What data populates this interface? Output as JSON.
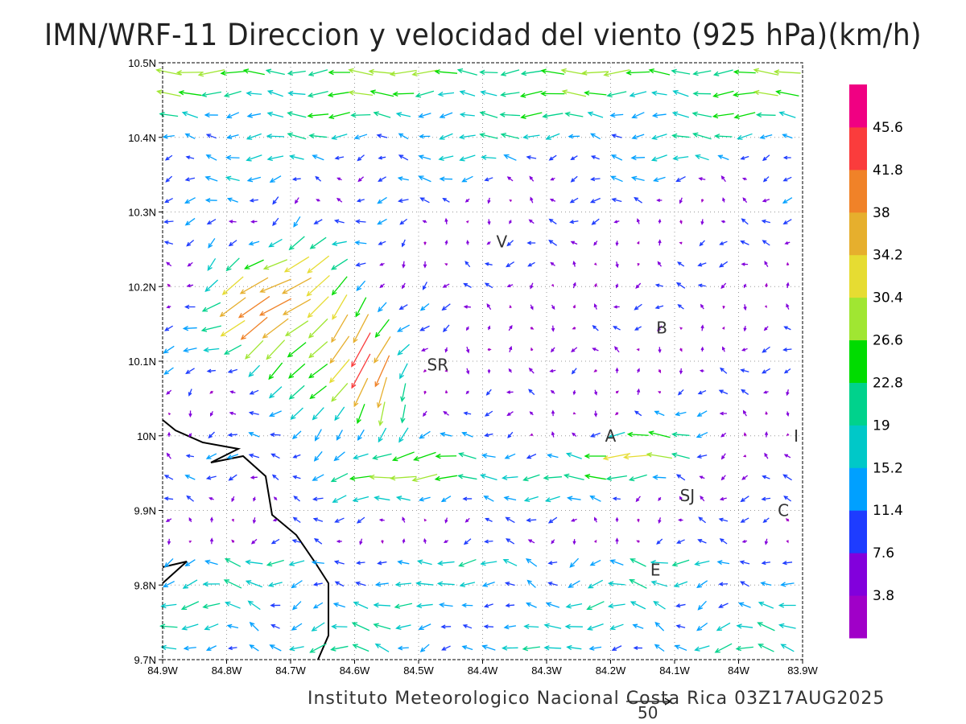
{
  "title": "IMN/WRF-11 Direccion y velocidad del viento (925 hPa)(km/h)",
  "footer": "Instituto Meteorologico Nacional Costa Rica 03Z17AUG2025",
  "reference_vector": {
    "label": "50",
    "value": 50
  },
  "chart_data": {
    "type": "vector-field",
    "xlabel": "",
    "ylabel": "",
    "xlim": [
      -84.9,
      -83.9
    ],
    "ylim": [
      9.7,
      10.5
    ],
    "x_ticks": [
      "84.9W",
      "84.8W",
      "84.7W",
      "84.6W",
      "84.5W",
      "84.4W",
      "84.3W",
      "84.2W",
      "84.1W",
      "84W",
      "83.9W"
    ],
    "y_ticks": [
      "9.7N",
      "9.8N",
      "9.9N",
      "10N",
      "10.1N",
      "10.2N",
      "10.3N",
      "10.4N",
      "10.5N"
    ],
    "grid": "dotted",
    "units": "km/h",
    "level": "925 hPa"
  },
  "colorbar": {
    "labels": [
      "3.8",
      "7.6",
      "11.4",
      "15.2",
      "19",
      "22.8",
      "26.6",
      "30.4",
      "34.2",
      "38",
      "41.8",
      "45.6"
    ],
    "colors": [
      "#a000c8",
      "#8200dc",
      "#1e3cff",
      "#00a0ff",
      "#00c8c8",
      "#00d28c",
      "#00dc00",
      "#a0e632",
      "#e6dc32",
      "#e6af2d",
      "#f08228",
      "#fa3c3c",
      "#f00082"
    ]
  },
  "cities": [
    {
      "label": "V",
      "lon": -84.37,
      "lat": 10.26
    },
    {
      "label": "B",
      "lon": -84.12,
      "lat": 10.145
    },
    {
      "label": "SR",
      "lon": -84.47,
      "lat": 10.095
    },
    {
      "label": "A",
      "lon": -84.2,
      "lat": 10.0
    },
    {
      "label": "I",
      "lon": -83.91,
      "lat": 10.0
    },
    {
      "label": "SJ",
      "lon": -84.08,
      "lat": 9.92
    },
    {
      "label": "C",
      "lon": -83.93,
      "lat": 9.9
    },
    {
      "label": "E",
      "lon": -84.13,
      "lat": 9.82
    }
  ]
}
